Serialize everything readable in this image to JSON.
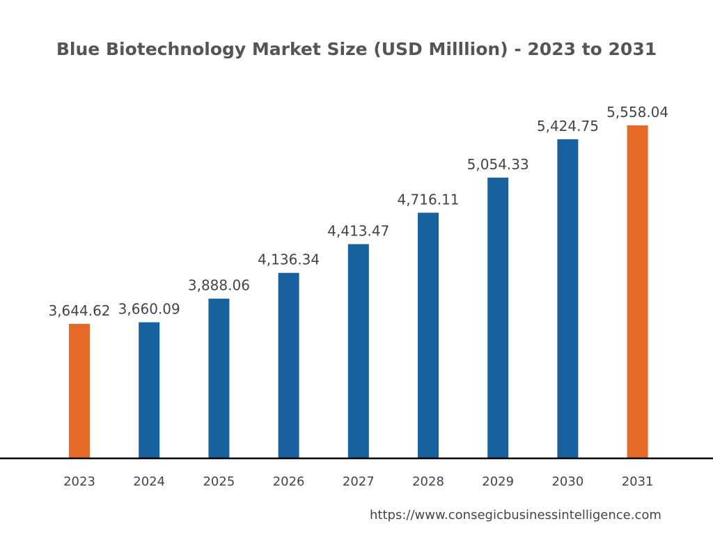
{
  "chart_data": {
    "type": "bar",
    "title": "Blue Biotechnology Market Size (USD Milllion) - 2023 to 2031",
    "xlabel": "",
    "ylabel": "",
    "categories": [
      "2023",
      "2024",
      "2025",
      "2026",
      "2027",
      "2028",
      "2029",
      "2030",
      "2031"
    ],
    "values": [
      3644.62,
      3660.09,
      3888.06,
      4136.34,
      4413.47,
      4716.11,
      5054.33,
      5424.75,
      5558.04
    ],
    "value_labels": [
      "3,644.62",
      "3,660.09",
      "3,888.06",
      "4,136.34",
      "4,413.47",
      "4,716.11",
      "5,054.33",
      "5,424.75",
      "5,558.04"
    ],
    "highlight": [
      true,
      false,
      false,
      false,
      false,
      false,
      false,
      false,
      true
    ],
    "ylim": [
      2348,
      5558.04
    ],
    "grid": false,
    "colors": {
      "default": "#17629e",
      "highlight": "#e46a25",
      "axis": "#000000",
      "text": "#444444"
    }
  },
  "footer": {
    "url": "https://www.consegicbusinessintelligence.com"
  }
}
